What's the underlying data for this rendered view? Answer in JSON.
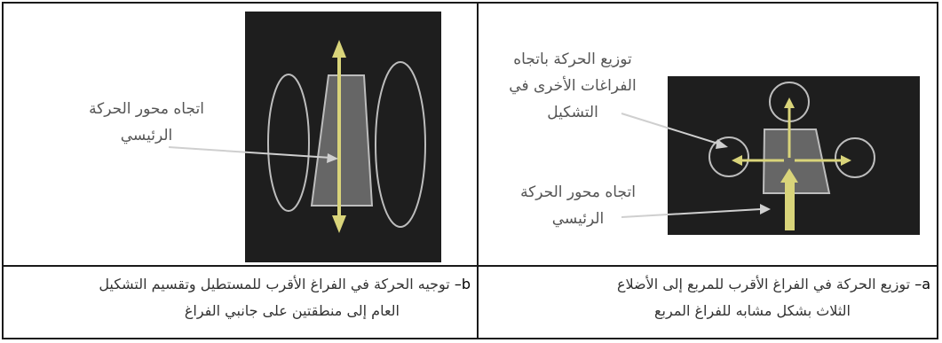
{
  "left_cell": {
    "label_main_axis": [
      "اتجاه محور الحركة",
      "الرئيسي"
    ],
    "caption_tag": "b–",
    "caption_lines": [
      "توجيه الحركة في الفراغ الأقرب للمستطيل وتقسيم التشكيل",
      "العام إلى منطقتين على جانبي الفراغ"
    ]
  },
  "right_cell": {
    "label_distribution": [
      "توزيع الحركة باتجاه",
      "الفراغات الأخرى في",
      "التشكيل"
    ],
    "label_main_axis": [
      "اتجاه محور الحركة",
      "الرئيسي"
    ],
    "caption_tag": "a–",
    "caption_lines": [
      "توزيع الحركة في الفراغ الأقرب للمربع إلى الأضلاع",
      "الثلاث بشكل مشابه للفراغ المربع"
    ]
  },
  "colors": {
    "panel_bg": "#1e1e1e",
    "shape_fill": "#666666",
    "outline": "#bdbdbd",
    "arrow": "#d9d47a",
    "pointer": "#cfcfcf"
  }
}
